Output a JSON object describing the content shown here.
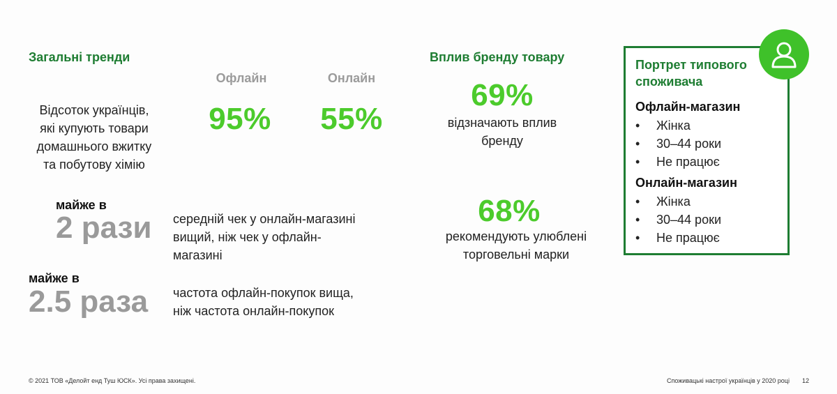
{
  "left": {
    "heading": "Загальні тренди",
    "col_offline": "Офлайн",
    "col_online": "Онлайн",
    "description": "Відсоток українців,\nякі купують товари\nдомашнього вжитку\nта побутову хімію",
    "pct_offline": "95%",
    "pct_online": "55%",
    "stat1_prefix": "майже в",
    "stat1_value": "2 рази",
    "stat1_text": "середній чек у онлайн-магазині\nвищий, ніж чек у офлайн-\nмагазині",
    "stat2_prefix": "майже в",
    "stat2_value": "2.5 раза",
    "stat2_text": "частота офлайн-покупок вища,\nніж частота онлайн-покупок"
  },
  "middle": {
    "heading": "Вплив бренду товару",
    "pct1": "69%",
    "text1": "відзначають вплив\nбренду",
    "pct2": "68%",
    "text2": "рекомендують улюблені\nторговельні марки"
  },
  "portrait": {
    "title": "Портрет типового\nспоживача",
    "icon": "user-icon",
    "offline": {
      "title": "Офлайн-магазин",
      "items": [
        "Жінка",
        "30–44 роки",
        "Не працює"
      ]
    },
    "online": {
      "title": "Онлайн-магазин",
      "items": [
        "Жінка",
        "30–44 роки",
        "Не працює"
      ]
    }
  },
  "footer": {
    "copyright": "© 2021 ТОВ «Делойт енд Туш ЮСК». Усі права захищені.",
    "report_title": "Споживацькі настрої українців у 2020 році",
    "page_number": "12"
  },
  "colors": {
    "accent_green": "#4ccb2c",
    "heading_green": "#1e7d32",
    "gray_stat": "#9a9a9a"
  }
}
